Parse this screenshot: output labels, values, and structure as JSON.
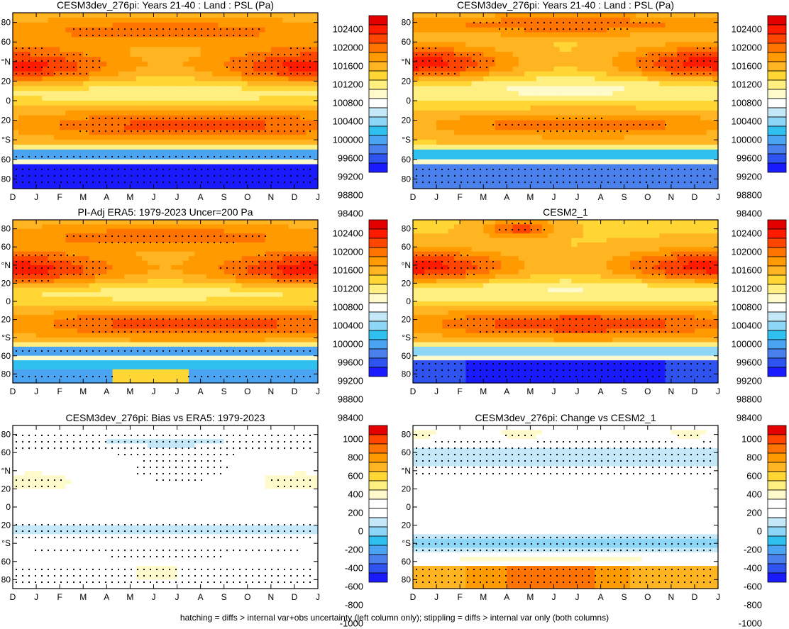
{
  "footer_note": "hatching = diffs > internal var+obs uncertainty (left column only); stippling = diffs > internal var only (both columns)",
  "palettes": {
    "psl": [
      "#1a1aff",
      "#2e53f0",
      "#4a80ec",
      "#4aa4f2",
      "#30c0f0",
      "#8ed6f5",
      "#c4e8f8",
      "#ffffff",
      "#fffacc",
      "#ffef80",
      "#ffd633",
      "#ffb522",
      "#ff9a00",
      "#ff7400",
      "#ff4500",
      "#ff1a00",
      "#e50000"
    ],
    "diff": [
      "#1a1aff",
      "#2e53f0",
      "#4a80ec",
      "#4aa4f2",
      "#30c0f0",
      "#8ed6f5",
      "#c4e8f8",
      "#ffffff",
      "#ffffff",
      "#fffacc",
      "#ffef80",
      "#ffd633",
      "#ffb522",
      "#ff9a00",
      "#ff7400",
      "#ff4500",
      "#e50000"
    ]
  },
  "colorbars": {
    "psl": [
      "102400",
      "102000",
      "101600",
      "101200",
      "100800",
      "100400",
      "100000",
      "99600",
      "99200",
      "98800",
      "98400"
    ],
    "diff": [
      "1000",
      "800",
      "600",
      "400",
      "200",
      "0",
      "-200",
      "-400",
      "-600",
      "-800",
      "-1000"
    ]
  },
  "axes": {
    "months": [
      "D",
      "J",
      "F",
      "M",
      "A",
      "M",
      "J",
      "J",
      "A",
      "S",
      "O",
      "N",
      "D",
      "J"
    ],
    "lat_labels": [
      "80",
      "60",
      "°N",
      "20",
      "0",
      "20",
      "°S",
      "60",
      "80"
    ]
  },
  "chart_data": [
    {
      "type": "heatmap",
      "title": "CESM3dev_276pi: Years 21-40 : Land : PSL (Pa)",
      "variable": "PSL",
      "units": "Pa",
      "colorbar": "psl",
      "field": "sim_a",
      "xaxis": "month",
      "yaxis": "latitude"
    },
    {
      "type": "heatmap",
      "title": "CESM3dev_276pi: Years 21-40 : Land : PSL (Pa)",
      "variable": "PSL",
      "units": "Pa",
      "colorbar": "psl",
      "field": "sim_b",
      "xaxis": "month",
      "yaxis": "latitude"
    },
    {
      "type": "heatmap",
      "title": "PI-Adj ERA5: 1979-2023 Uncer=200 Pa",
      "variable": "PSL",
      "units": "Pa",
      "colorbar": "psl",
      "field": "obs",
      "xaxis": "month",
      "yaxis": "latitude"
    },
    {
      "type": "heatmap",
      "title": "CESM2_1",
      "variable": "PSL",
      "units": "Pa",
      "colorbar": "psl",
      "field": "cesm2",
      "xaxis": "month",
      "yaxis": "latitude"
    },
    {
      "type": "heatmap",
      "title": "CESM3dev_276pi: Bias vs ERA5: 1979-2023",
      "variable": "PSL difference",
      "units": "Pa",
      "colorbar": "diff",
      "field": "bias",
      "xaxis": "month",
      "yaxis": "latitude"
    },
    {
      "type": "heatmap",
      "title": "CESM3dev_276pi: Change vs CESM2_1",
      "variable": "PSL difference",
      "units": "Pa",
      "colorbar": "diff",
      "field": "change",
      "xaxis": "month",
      "yaxis": "latitude"
    }
  ]
}
